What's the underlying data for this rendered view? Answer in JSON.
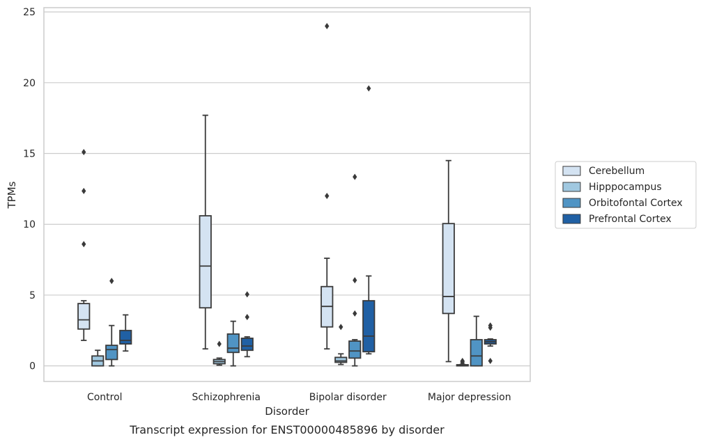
{
  "caption": "Transcript expression for ENST00000485896 by disorder",
  "chart_data": {
    "type": "boxplot",
    "xlabel": "Disorder",
    "ylabel": "TPMs",
    "ylim": [
      -1.1,
      25.3
    ],
    "yticks": [
      0,
      5,
      10,
      15,
      20,
      25
    ],
    "grid": "horizontal",
    "legend_position": "right",
    "categories": [
      "Control",
      "Schizophrenia",
      "Bipolar disorder",
      "Major depression"
    ],
    "series": [
      {
        "name": "Cerebellum",
        "color": "#d4e3f2",
        "boxes": [
          {
            "whislo": 1.8,
            "q1": 2.6,
            "med": 3.25,
            "q3": 4.4,
            "whishi": 4.6,
            "fliers": [
              8.6,
              12.35,
              15.1
            ]
          },
          {
            "whislo": 1.2,
            "q1": 4.1,
            "med": 7.05,
            "q3": 10.6,
            "whishi": 17.7,
            "fliers": []
          },
          {
            "whislo": 1.2,
            "q1": 2.75,
            "med": 4.2,
            "q3": 5.6,
            "whishi": 7.6,
            "fliers": [
              12.0,
              24.0
            ]
          },
          {
            "whislo": 0.3,
            "q1": 3.7,
            "med": 4.9,
            "q3": 10.05,
            "whishi": 14.5,
            "fliers": []
          }
        ]
      },
      {
        "name": "Hipppocampus",
        "color": "#a0c8e0",
        "boxes": [
          {
            "whislo": 0.0,
            "q1": 0.0,
            "med": 0.35,
            "q3": 0.7,
            "whishi": 1.1,
            "fliers": []
          },
          {
            "whislo": 0.05,
            "q1": 0.15,
            "med": 0.3,
            "q3": 0.45,
            "whishi": 0.55,
            "fliers": [
              1.55
            ]
          },
          {
            "whislo": 0.1,
            "q1": 0.25,
            "med": 0.35,
            "q3": 0.6,
            "whishi": 0.85,
            "fliers": [
              2.75
            ]
          },
          {
            "whislo": 0.0,
            "q1": 0.0,
            "med": 0.03,
            "q3": 0.08,
            "whishi": 0.1,
            "fliers": [
              0.2,
              0.3,
              0.35
            ]
          }
        ]
      },
      {
        "name": "Orbitofontal Cortex",
        "color": "#5094c4",
        "boxes": [
          {
            "whislo": 0.0,
            "q1": 0.45,
            "med": 1.15,
            "q3": 1.45,
            "whishi": 2.85,
            "fliers": [
              6.0
            ]
          },
          {
            "whislo": 0.0,
            "q1": 0.95,
            "med": 1.25,
            "q3": 2.25,
            "whishi": 3.15,
            "fliers": []
          },
          {
            "whislo": 0.0,
            "q1": 0.55,
            "med": 1.05,
            "q3": 1.75,
            "whishi": 1.85,
            "fliers": [
              3.7,
              6.05,
              13.35
            ]
          },
          {
            "whislo": 0.0,
            "q1": 0.0,
            "med": 0.7,
            "q3": 1.85,
            "whishi": 3.5,
            "fliers": []
          }
        ]
      },
      {
        "name": "Prefrontal Cortex",
        "color": "#2060a4",
        "boxes": [
          {
            "whislo": 1.05,
            "q1": 1.55,
            "med": 1.8,
            "q3": 2.5,
            "whishi": 3.6,
            "fliers": []
          },
          {
            "whislo": 0.65,
            "q1": 1.1,
            "med": 1.4,
            "q3": 1.95,
            "whishi": 2.05,
            "fliers": [
              3.45,
              5.05
            ]
          },
          {
            "whislo": 0.85,
            "q1": 1.0,
            "med": 2.1,
            "q3": 4.6,
            "whishi": 6.35,
            "fliers": [
              19.6
            ]
          },
          {
            "whislo": 1.4,
            "q1": 1.55,
            "med": 1.7,
            "q3": 1.85,
            "whishi": 1.9,
            "fliers": [
              0.35,
              2.7,
              2.85
            ]
          }
        ]
      }
    ]
  }
}
